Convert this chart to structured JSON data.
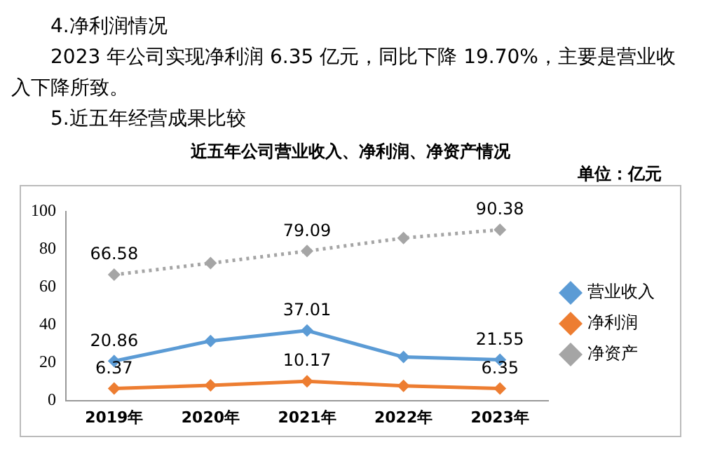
{
  "chart_data": {
    "type": "line",
    "title": "近五年公司营业收入、净利润、净资产情况",
    "subtitle": "单位：亿元",
    "annotations": [
      "4.净利润情况",
      "2023 年公司实现净利润 6.35 亿元，同比下降 19.70%，主要是营业收入下降所致。",
      "5.近五年经营成果比较"
    ],
    "categories": [
      "2019年",
      "2020年",
      "2021年",
      "2022年",
      "2023年"
    ],
    "series": [
      {
        "name": "营业收入",
        "color": "#5b9bd5",
        "values": [
          20.86,
          31.5,
          37.01,
          23,
          21.55
        ],
        "value_labels": [
          "20.86",
          null,
          "37.01",
          null,
          "21.55"
        ]
      },
      {
        "name": "净利润",
        "color": "#ed7d31",
        "values": [
          6.37,
          8,
          10.17,
          7.7,
          6.35
        ],
        "value_labels": [
          "6.37",
          null,
          "10.17",
          null,
          "6.35"
        ]
      },
      {
        "name": "净资产",
        "color": "#a5a5a5",
        "values": [
          66.58,
          72.7,
          79.09,
          86,
          90.38
        ],
        "value_labels": [
          "66.58",
          null,
          "79.09",
          null,
          "90.38"
        ],
        "line_style": "dotted"
      }
    ],
    "ylim": [
      0,
      100
    ],
    "yticks": [
      0,
      20,
      40,
      60,
      80,
      100
    ],
    "grid": false,
    "legend": "right",
    "marker": "diamond"
  }
}
